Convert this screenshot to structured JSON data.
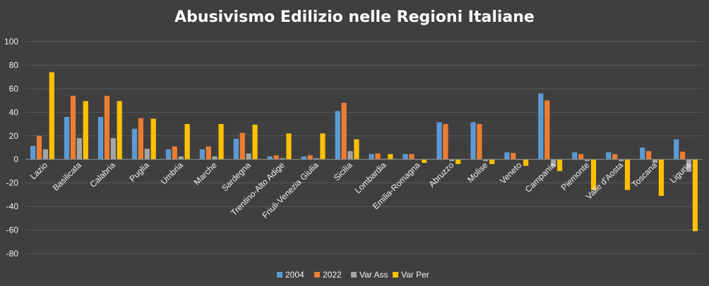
{
  "chart_data": {
    "type": "bar",
    "title": "Abusivismo Edilizio nelle Regioni Italiane",
    "xlabel": "",
    "ylabel": "",
    "ylim": [
      -80,
      100
    ],
    "yticks": [
      100,
      80,
      60,
      40,
      20,
      0,
      -20,
      -40,
      -60,
      -80
    ],
    "grid": true,
    "legend_position": "bottom",
    "categories": [
      "Lazio",
      "Basilicata",
      "Calabria",
      "Puglia",
      "Umbria",
      "Marche",
      "Sardegna",
      "Trentino-Alto Adige",
      "Friuli-Venezia Giulia",
      "Sicilia",
      "Lombardia",
      "Emilia-Romagna",
      "Abruzzo",
      "Molise",
      "Veneto",
      "Campania",
      "Piemonte",
      "Valle d'Aosta",
      "Toscana",
      "Liguria"
    ],
    "series": [
      {
        "name": "2004",
        "color": "#5b9bd5",
        "values": [
          11.5,
          36,
          36,
          26,
          8.5,
          8.5,
          17.5,
          2.5,
          2.5,
          41,
          4.5,
          4.5,
          31.5,
          31.5,
          6,
          56,
          6,
          6,
          10,
          17
        ]
      },
      {
        "name": "2022",
        "color": "#ed7d31",
        "values": [
          20,
          54,
          54,
          35,
          11,
          11,
          22.5,
          3.5,
          3.5,
          48,
          5,
          4.5,
          30,
          30,
          5.5,
          50,
          4.5,
          4.5,
          7,
          6.5
        ]
      },
      {
        "name": "Var Ass",
        "color": "#a5a5a5",
        "values": [
          8.5,
          18,
          18,
          9,
          2.5,
          2.5,
          5,
          1,
          1,
          7,
          0.5,
          0,
          -1.5,
          -1.5,
          -0.5,
          -6,
          -1.5,
          -1.5,
          -3,
          -10.5
        ]
      },
      {
        "name": "Var Per",
        "color": "#ffc000",
        "values": [
          74,
          49.5,
          49.5,
          34.5,
          30,
          30,
          29.5,
          22,
          22,
          17,
          4.5,
          -3,
          -4,
          -4,
          -5.5,
          -10,
          -26,
          -26,
          -31,
          -61
        ]
      }
    ]
  }
}
